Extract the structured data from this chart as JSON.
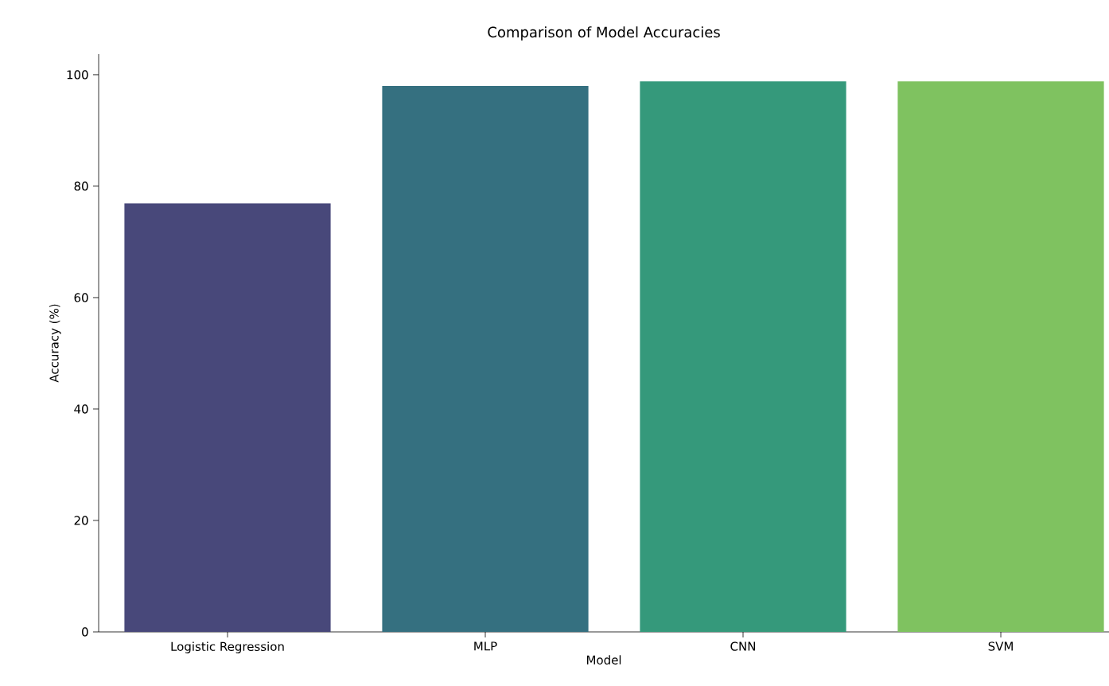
{
  "chart_data": {
    "type": "bar",
    "title": "Comparison of Model Accuracies",
    "xlabel": "Model",
    "ylabel": "Accuracy (%)",
    "categories": [
      "Logistic Regression",
      "MLP",
      "CNN",
      "SVM"
    ],
    "values": [
      76.9,
      98.0,
      98.8,
      98.8
    ],
    "colors": [
      "#48487a",
      "#357080",
      "#35997b",
      "#7fc260"
    ],
    "ylim": [
      0,
      103.7
    ],
    "yticks": [
      0,
      20,
      40,
      60,
      80,
      100
    ]
  }
}
